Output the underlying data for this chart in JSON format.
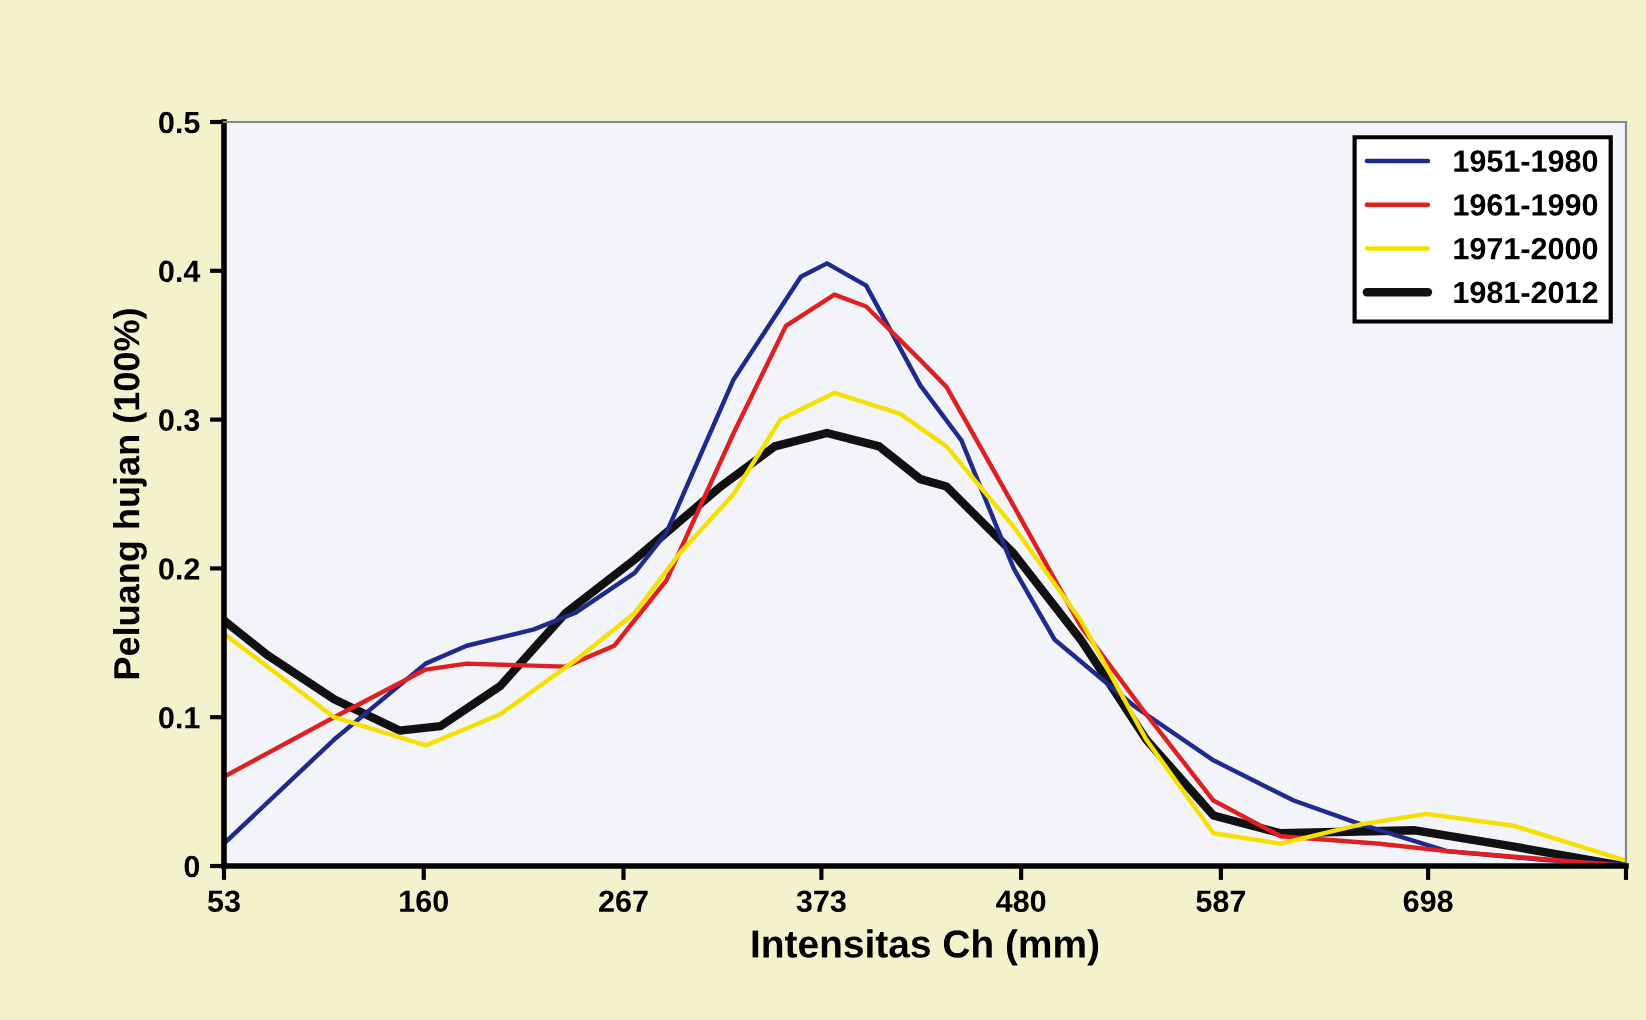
{
  "chart_data": {
    "type": "line",
    "xlabel": "Intensitas Ch (mm)",
    "ylabel": "Peluang hujan (100%)",
    "xlim": [
      53,
      804
    ],
    "xticks": [
      53,
      160,
      267,
      373,
      480,
      587,
      698,
      {
        "value": 804,
        "label": null
      }
    ],
    "ylim": [
      0,
      0.5
    ],
    "yticks": [
      0,
      0.1,
      0.2,
      0.3,
      0.4,
      0.5
    ],
    "grid": false,
    "legend": "top right",
    "marker": "none",
    "line_style": "solid",
    "series": [
      {
        "name": "1951-1980",
        "color": "#1f2a8c",
        "x": [
          53,
          112,
          161,
          183,
          219,
          241,
          273,
          290,
          326,
          362,
          376,
          397,
          426,
          448,
          476,
          498,
          541,
          583,
          626,
          662,
          708,
          761,
          803
        ],
        "values": [
          0.015,
          0.085,
          0.136,
          0.148,
          0.159,
          0.17,
          0.197,
          0.224,
          0.327,
          0.396,
          0.405,
          0.39,
          0.323,
          0.286,
          0.2,
          0.152,
          0.107,
          0.071,
          0.044,
          0.028,
          0.01,
          0.004,
          0.001
        ]
      },
      {
        "name": "1961-1990",
        "color": "#e02020",
        "x": [
          53,
          112,
          161,
          183,
          236,
          262,
          290,
          326,
          354,
          380,
          397,
          426,
          440,
          476,
          512,
          547,
          583,
          619,
          672,
          708,
          803
        ],
        "values": [
          0.06,
          0.1,
          0.132,
          0.136,
          0.134,
          0.148,
          0.192,
          0.291,
          0.363,
          0.384,
          0.376,
          0.34,
          0.322,
          0.242,
          0.161,
          0.102,
          0.044,
          0.02,
          0.015,
          0.01,
          0.0
        ]
      },
      {
        "name": "1971-2000",
        "color": "#f5e000",
        "x": [
          53,
          112,
          161,
          201,
          241,
          273,
          297,
          326,
          351,
          380,
          415,
          440,
          476,
          512,
          547,
          583,
          619,
          662,
          697,
          744,
          803
        ],
        "values": [
          0.156,
          0.1,
          0.081,
          0.102,
          0.138,
          0.17,
          0.21,
          0.25,
          0.3,
          0.318,
          0.304,
          0.282,
          0.228,
          0.165,
          0.085,
          0.022,
          0.015,
          0.028,
          0.035,
          0.027,
          0.004
        ]
      },
      {
        "name": "1981-2012",
        "color": "#111111",
        "x": [
          53,
          76,
          112,
          147,
          169,
          201,
          236,
          273,
          319,
          348,
          376,
          404,
          426,
          440,
          476,
          512,
          547,
          583,
          619,
          691,
          744,
          803
        ],
        "values": [
          0.165,
          0.142,
          0.112,
          0.091,
          0.094,
          0.121,
          0.17,
          0.206,
          0.255,
          0.282,
          0.291,
          0.282,
          0.26,
          0.255,
          0.21,
          0.152,
          0.085,
          0.034,
          0.022,
          0.024,
          0.013,
          0.0
        ]
      }
    ]
  }
}
